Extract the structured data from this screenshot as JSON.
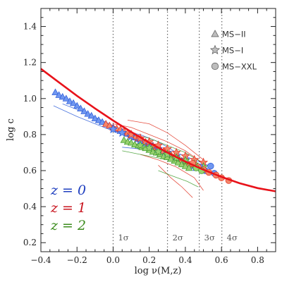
{
  "chart_data": {
    "type": "scatter",
    "xlabel": "log ν(M,z)",
    "ylabel": "log c",
    "xlim": [
      -0.4,
      0.9
    ],
    "ylim": [
      0.15,
      1.5
    ],
    "x_ticks": [
      {
        "value": -0.4,
        "label": "−0.4"
      },
      {
        "value": -0.2,
        "label": "−0.2"
      },
      {
        "value": 0.0,
        "label": "0.0"
      },
      {
        "value": 0.2,
        "label": "0.2"
      },
      {
        "value": 0.4,
        "label": "0.4"
      },
      {
        "value": 0.6,
        "label": "0.6"
      },
      {
        "value": 0.8,
        "label": "0.8"
      }
    ],
    "y_ticks": [
      {
        "value": 0.2,
        "label": "0.2"
      },
      {
        "value": 0.4,
        "label": "0.4"
      },
      {
        "value": 0.6,
        "label": "0.6"
      },
      {
        "value": 0.8,
        "label": "0.8"
      },
      {
        "value": 1.0,
        "label": "1.0"
      },
      {
        "value": 1.2,
        "label": "1.2"
      },
      {
        "value": 1.4,
        "label": "1.4"
      }
    ],
    "sigma_lines": [
      {
        "x": 0.0,
        "label": "1σ"
      },
      {
        "x": 0.301,
        "label": "2σ"
      },
      {
        "x": 0.477,
        "label": "3σ"
      },
      {
        "x": 0.602,
        "label": "4σ"
      }
    ],
    "legend_placement": "top-right",
    "legend": [
      {
        "label": "MS−II",
        "marker": "triangle"
      },
      {
        "label": "MS−I",
        "marker": "star"
      },
      {
        "label": "MS−XXL",
        "marker": "circle"
      }
    ],
    "redshift_labels": [
      {
        "label": "z = 0",
        "color": "#1f3fbf"
      },
      {
        "label": "z = 1",
        "color": "#c8141e"
      },
      {
        "label": "z = 2",
        "color": "#3c8c1e"
      }
    ],
    "colors": {
      "z0": "#2a5ad8",
      "z1": "#e03020",
      "z2": "#3c9a2a",
      "z0_fill": "#6f96f0",
      "z1_fill": "#f4876a",
      "z2_fill": "#98d070",
      "fit": "#e8121a"
    },
    "fit_curve": {
      "x": [
        -0.4,
        -0.3,
        -0.2,
        -0.1,
        0.0,
        0.1,
        0.2,
        0.3,
        0.4,
        0.5,
        0.6,
        0.7,
        0.8,
        0.9
      ],
      "y": [
        1.165,
        1.09,
        1.015,
        0.945,
        0.878,
        0.815,
        0.755,
        0.7,
        0.65,
        0.605,
        0.565,
        0.53,
        0.503,
        0.485
      ]
    },
    "thin_curves": [
      {
        "color": "z0",
        "x": [
          -0.33,
          -0.2,
          -0.1,
          0.0,
          0.1,
          0.2,
          0.3
        ],
        "y": [
          0.96,
          0.9,
          0.86,
          0.82,
          0.78,
          0.72,
          0.66
        ]
      },
      {
        "color": "z0",
        "x": [
          -0.28,
          -0.15,
          0.0,
          0.1,
          0.2,
          0.3,
          0.4
        ],
        "y": [
          0.97,
          0.92,
          0.85,
          0.8,
          0.75,
          0.69,
          0.63
        ]
      },
      {
        "color": "z0",
        "x": [
          -0.05,
          0.05,
          0.15,
          0.25,
          0.35,
          0.45,
          0.55
        ],
        "y": [
          0.84,
          0.82,
          0.8,
          0.76,
          0.7,
          0.66,
          0.62
        ]
      },
      {
        "color": "z0",
        "x": [
          0.05,
          0.15,
          0.25,
          0.35,
          0.45
        ],
        "y": [
          0.73,
          0.72,
          0.7,
          0.68,
          0.63
        ]
      },
      {
        "color": "z1",
        "x": [
          0.0,
          0.1,
          0.2,
          0.3,
          0.4,
          0.5
        ],
        "y": [
          0.86,
          0.84,
          0.8,
          0.76,
          0.71,
          0.64
        ]
      },
      {
        "color": "z1",
        "x": [
          0.08,
          0.2,
          0.3,
          0.4,
          0.5
        ],
        "y": [
          0.88,
          0.86,
          0.81,
          0.74,
          0.66
        ]
      },
      {
        "color": "z1",
        "x": [
          0.15,
          0.25,
          0.35,
          0.45,
          0.5
        ],
        "y": [
          0.69,
          0.66,
          0.62,
          0.56,
          0.49
        ]
      },
      {
        "color": "z1",
        "x": [
          0.25,
          0.32,
          0.38,
          0.44
        ],
        "y": [
          0.63,
          0.56,
          0.51,
          0.45
        ]
      },
      {
        "color": "z2",
        "x": [
          0.05,
          0.15,
          0.25,
          0.35,
          0.45
        ],
        "y": [
          0.71,
          0.69,
          0.67,
          0.65,
          0.62
        ]
      },
      {
        "color": "z2",
        "x": [
          0.1,
          0.2,
          0.3,
          0.4,
          0.5
        ],
        "y": [
          0.8,
          0.78,
          0.74,
          0.7,
          0.64
        ]
      },
      {
        "color": "z2",
        "x": [
          0.2,
          0.3,
          0.4,
          0.5,
          0.55
        ],
        "y": [
          0.72,
          0.7,
          0.66,
          0.61,
          0.58
        ]
      },
      {
        "color": "z2",
        "x": [
          0.25,
          0.33,
          0.41,
          0.47
        ],
        "y": [
          0.6,
          0.57,
          0.54,
          0.51
        ]
      }
    ],
    "series": [
      {
        "marker": "triangle",
        "color": "z0",
        "x": [
          -0.32,
          -0.3,
          -0.28,
          -0.26,
          -0.24,
          -0.22,
          -0.2,
          -0.18,
          -0.16,
          -0.14,
          -0.12,
          -0.1,
          -0.08,
          -0.06,
          -0.04,
          -0.02,
          0.0,
          0.02,
          0.04,
          0.06,
          0.08,
          0.1,
          0.12,
          0.14,
          0.16,
          0.18,
          0.2,
          0.22,
          0.24,
          0.26,
          0.28,
          0.3,
          0.32,
          0.34,
          0.36,
          0.38,
          0.4,
          0.42,
          0.44,
          0.46
        ],
        "y": [
          1.035,
          1.02,
          1.01,
          1.0,
          0.985,
          0.975,
          0.96,
          0.945,
          0.93,
          0.915,
          0.905,
          0.89,
          0.88,
          0.87,
          0.86,
          0.85,
          0.84,
          0.83,
          0.82,
          0.815,
          0.805,
          0.795,
          0.785,
          0.775,
          0.765,
          0.755,
          0.745,
          0.735,
          0.725,
          0.715,
          0.705,
          0.695,
          0.685,
          0.675,
          0.665,
          0.655,
          0.645,
          0.635,
          0.625,
          0.615
        ]
      },
      {
        "marker": "triangle",
        "color": "z1",
        "x": [
          -0.04,
          -0.02,
          0.0,
          0.02,
          0.04,
          0.06,
          0.08,
          0.1,
          0.12,
          0.14,
          0.16,
          0.18,
          0.2,
          0.22,
          0.24,
          0.26,
          0.28,
          0.3,
          0.32,
          0.34,
          0.36,
          0.38,
          0.4,
          0.42
        ],
        "y": [
          0.86,
          0.85,
          0.84,
          0.835,
          0.83,
          0.82,
          0.81,
          0.8,
          0.79,
          0.78,
          0.77,
          0.76,
          0.75,
          0.74,
          0.73,
          0.72,
          0.71,
          0.7,
          0.69,
          0.68,
          0.67,
          0.655,
          0.645,
          0.635
        ]
      },
      {
        "marker": "triangle",
        "color": "z2",
        "x": [
          0.06,
          0.08,
          0.1,
          0.12,
          0.14,
          0.16,
          0.18,
          0.2,
          0.22,
          0.24,
          0.26,
          0.28,
          0.3,
          0.32,
          0.34,
          0.36,
          0.38,
          0.4,
          0.42
        ],
        "y": [
          0.77,
          0.76,
          0.755,
          0.745,
          0.74,
          0.73,
          0.725,
          0.715,
          0.705,
          0.7,
          0.69,
          0.68,
          0.675,
          0.665,
          0.655,
          0.645,
          0.635,
          0.625,
          0.615
        ]
      },
      {
        "marker": "star",
        "color": "z0",
        "x": [
          0.0,
          0.05,
          0.1,
          0.15,
          0.2,
          0.25,
          0.3,
          0.35,
          0.4
        ],
        "y": [
          0.83,
          0.81,
          0.79,
          0.765,
          0.745,
          0.72,
          0.7,
          0.68,
          0.66
        ]
      },
      {
        "marker": "star",
        "color": "z1",
        "x": [
          0.1,
          0.15,
          0.2,
          0.25,
          0.3,
          0.35,
          0.4,
          0.45,
          0.5
        ],
        "y": [
          0.8,
          0.78,
          0.76,
          0.74,
          0.72,
          0.7,
          0.68,
          0.66,
          0.645
        ]
      },
      {
        "marker": "star",
        "color": "z2",
        "x": [
          0.15,
          0.2,
          0.25,
          0.3,
          0.35,
          0.4,
          0.45,
          0.5
        ],
        "y": [
          0.74,
          0.725,
          0.705,
          0.69,
          0.67,
          0.655,
          0.635,
          0.62
        ]
      },
      {
        "marker": "circle",
        "color": "z0",
        "x": [
          0.48,
          0.51,
          0.54,
          0.56
        ],
        "y": [
          0.62,
          0.6,
          0.625,
          0.585
        ]
      },
      {
        "marker": "circle",
        "color": "z1",
        "x": [
          0.44,
          0.47,
          0.5,
          0.53,
          0.57,
          0.6,
          0.64
        ],
        "y": [
          0.64,
          0.62,
          0.605,
          0.59,
          0.575,
          0.56,
          0.545
        ]
      },
      {
        "marker": "circle",
        "color": "z2",
        "x": [
          0.46,
          0.49
        ],
        "y": [
          0.615,
          0.6
        ]
      }
    ]
  }
}
